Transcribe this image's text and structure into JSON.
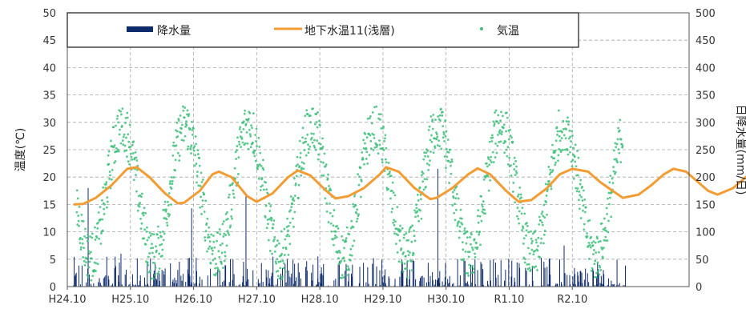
{
  "chart_data": {
    "type": "line",
    "title": "",
    "xlabel": "",
    "ylabel": "温度(℃)",
    "y2label": "日降水量(mm/日)",
    "ylim": [
      0,
      50
    ],
    "y2lim": [
      0,
      500
    ],
    "yticks": [
      "0",
      "5",
      "10",
      "15",
      "20",
      "25",
      "30",
      "35",
      "40",
      "45",
      "50"
    ],
    "y2ticks": [
      "0",
      "50",
      "100",
      "150",
      "200",
      "250",
      "300",
      "350",
      "400",
      "450",
      "500"
    ],
    "categories": [
      "H24.10",
      "H25.10",
      "H26.10",
      "H27.10",
      "H28.10",
      "H29.10",
      "H30.10",
      "R1.10",
      "R2.10"
    ],
    "grid": true,
    "legend_placement": "top",
    "series": [
      {
        "name": "降水量",
        "kind": "bar",
        "axis": "right",
        "color": "#0d2a6b",
        "note": "daily precipitation (mm/day), mostly below 60, spikes up to ~215",
        "spikes": [
          {
            "x": 2013.08,
            "y": 180
          },
          {
            "x": 2013.6,
            "y": 60
          },
          {
            "x": 2014.72,
            "y": 143
          },
          {
            "x": 2015.58,
            "y": 165
          },
          {
            "x": 2016.72,
            "y": 55
          },
          {
            "x": 2018.62,
            "y": 215
          },
          {
            "x": 2019.5,
            "y": 50
          },
          {
            "x": 2019.62,
            "y": 48
          },
          {
            "x": 2020.62,
            "y": 75
          }
        ]
      },
      {
        "name": "地下水温11(浅層)",
        "kind": "line",
        "axis": "left",
        "color": "#f29c33",
        "points": [
          [
            2012.85,
            15.0
          ],
          [
            2013.0,
            15.1
          ],
          [
            2013.2,
            16.2
          ],
          [
            2013.45,
            18.5
          ],
          [
            2013.7,
            21.5
          ],
          [
            2013.85,
            21.8
          ],
          [
            2014.05,
            20.0
          ],
          [
            2014.3,
            17.0
          ],
          [
            2014.5,
            15.2
          ],
          [
            2014.6,
            15.3
          ],
          [
            2014.85,
            17.5
          ],
          [
            2015.05,
            20.5
          ],
          [
            2015.15,
            21.0
          ],
          [
            2015.35,
            20.0
          ],
          [
            2015.6,
            16.5
          ],
          [
            2015.75,
            15.5
          ],
          [
            2016.0,
            17.0
          ],
          [
            2016.25,
            20.0
          ],
          [
            2016.4,
            21.2
          ],
          [
            2016.6,
            20.3
          ],
          [
            2016.85,
            17.5
          ],
          [
            2017.0,
            16.1
          ],
          [
            2017.2,
            16.5
          ],
          [
            2017.45,
            18.0
          ],
          [
            2017.7,
            20.5
          ],
          [
            2017.8,
            21.8
          ],
          [
            2018.0,
            21.0
          ],
          [
            2018.25,
            18.0
          ],
          [
            2018.5,
            16.0
          ],
          [
            2018.6,
            16.2
          ],
          [
            2018.85,
            18.0
          ],
          [
            2019.1,
            20.5
          ],
          [
            2019.25,
            21.6
          ],
          [
            2019.45,
            20.5
          ],
          [
            2019.7,
            17.5
          ],
          [
            2019.9,
            15.5
          ],
          [
            2020.1,
            15.8
          ],
          [
            2020.35,
            18.0
          ],
          [
            2020.55,
            20.5
          ],
          [
            2020.75,
            21.5
          ],
          [
            2021.0,
            21.0
          ],
          [
            2021.2,
            19.0
          ],
          [
            2021.45,
            17.0
          ],
          [
            2021.55,
            16.2
          ],
          [
            2021.8,
            16.8
          ],
          [
            2022.0,
            18.5
          ],
          [
            2022.2,
            20.5
          ],
          [
            2022.35,
            21.5
          ],
          [
            2022.55,
            21.0
          ],
          [
            2022.75,
            19.0
          ],
          [
            2022.9,
            17.5
          ],
          [
            2023.05,
            16.8
          ],
          [
            2023.3,
            18.0
          ],
          [
            2023.5,
            20.0
          ],
          [
            2023.65,
            21.5
          ],
          [
            2023.85,
            20.5
          ],
          [
            2024.05,
            18.0
          ],
          [
            2024.25,
            16.5
          ],
          [
            2024.45,
            16.8
          ],
          [
            2024.7,
            18.5
          ],
          [
            2024.95,
            20.5
          ],
          [
            2025.15,
            21.6
          ],
          [
            2025.35,
            20.5
          ],
          [
            2025.6,
            18.5
          ],
          [
            2025.85,
            17.0
          ]
        ]
      },
      {
        "name": "気温",
        "kind": "scatter",
        "axis": "left",
        "color": "#3fbf7a",
        "annual_pattern": {
          "mean": 17.5,
          "amplitude": 12,
          "peak_month": "August",
          "min_approx": 2,
          "max_approx": 32
        }
      }
    ]
  }
}
